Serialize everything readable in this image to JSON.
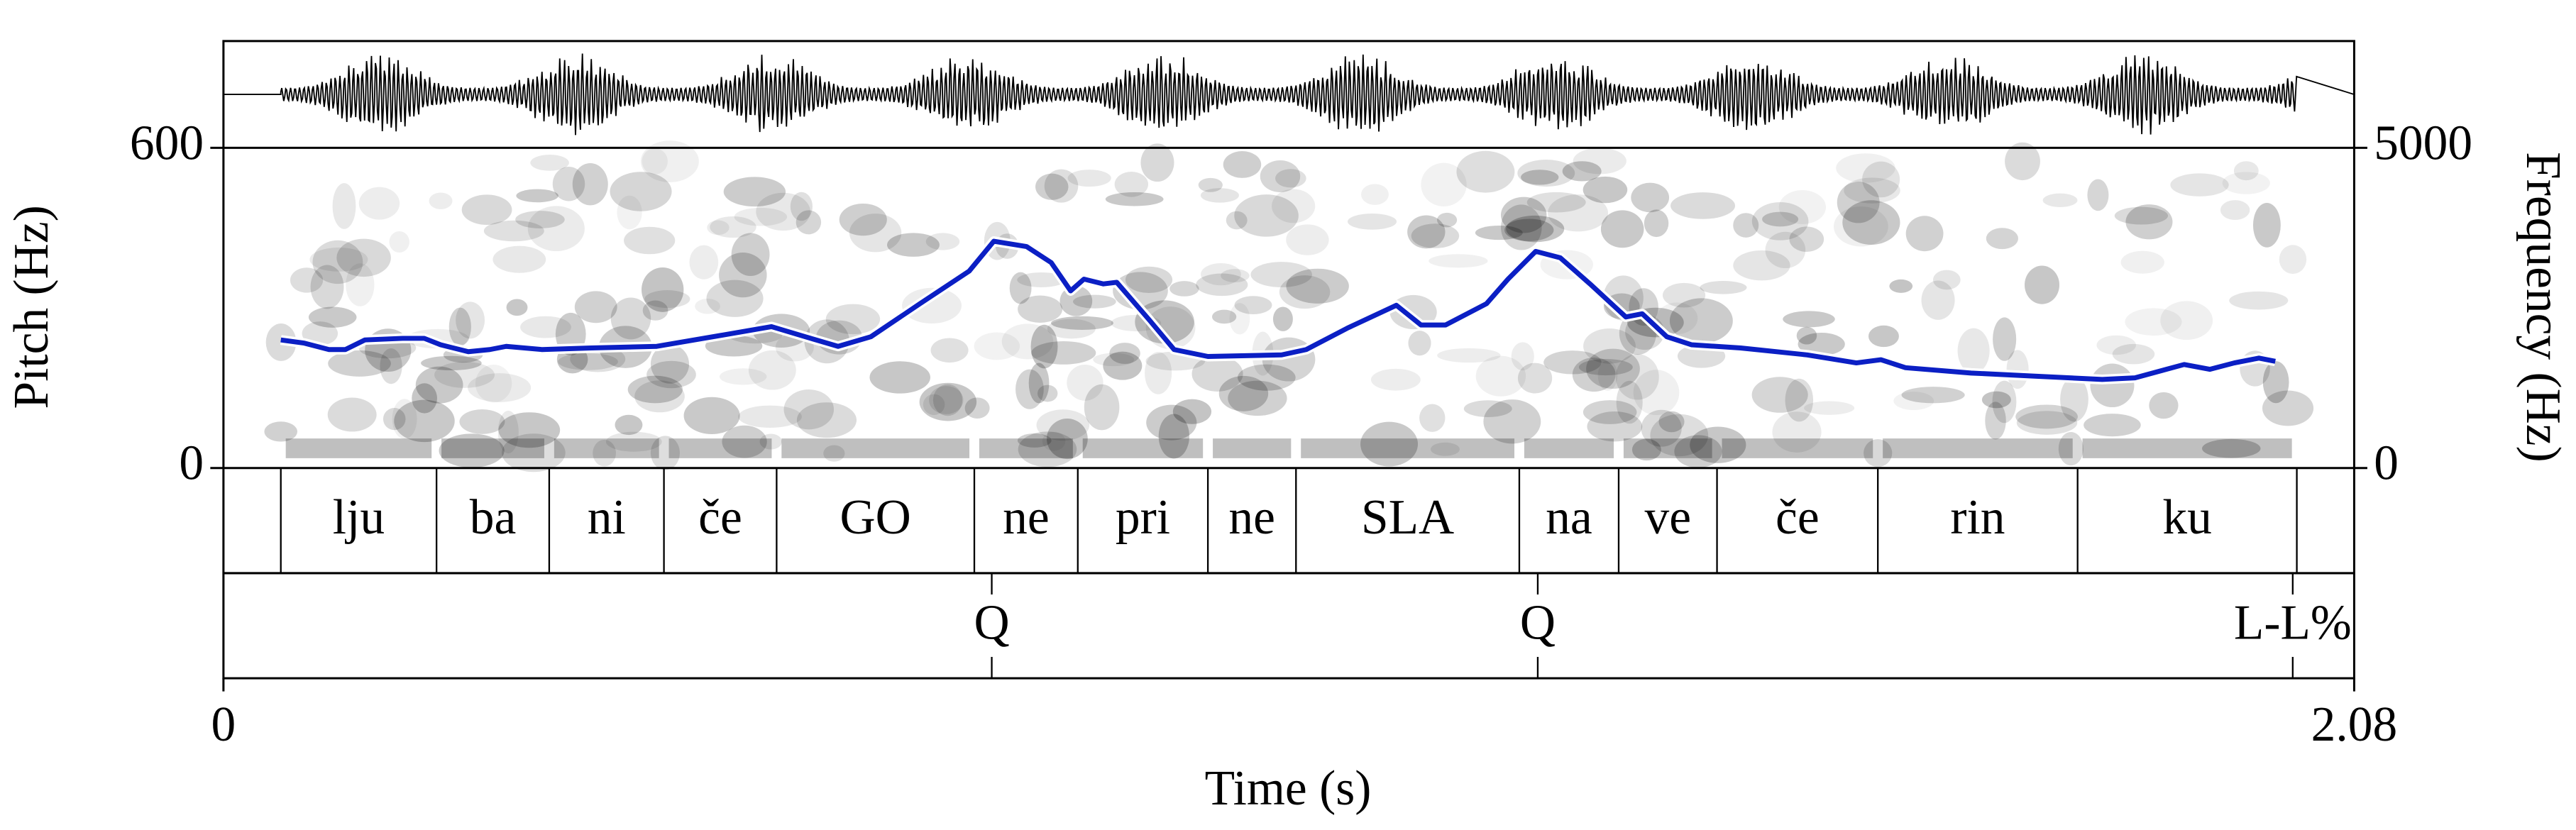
{
  "chart_data": {
    "type": "pitch",
    "xlabel": "Time (s)",
    "ylabel": "Pitch (Hz)",
    "y2label": "Frequency (Hz)",
    "xlim": [
      0,
      2.08
    ],
    "xticks": [
      0,
      2.08
    ],
    "ylim": [
      0,
      600
    ],
    "yticks": [
      0,
      600
    ],
    "y2lim": [
      0,
      5000
    ],
    "y2ticks": [
      0,
      5000
    ],
    "color": "#0b1fc4",
    "x": [
      0.056,
      0.079,
      0.103,
      0.119,
      0.138,
      0.175,
      0.196,
      0.212,
      0.239,
      0.26,
      0.276,
      0.311,
      0.359,
      0.423,
      0.487,
      0.535,
      0.568,
      0.6,
      0.632,
      0.68,
      0.728,
      0.752,
      0.784,
      0.808,
      0.827,
      0.84,
      0.859,
      0.872,
      0.904,
      0.928,
      0.961,
      1.033,
      1.057,
      1.097,
      1.145,
      1.169,
      1.193,
      1.233,
      1.254,
      1.281,
      1.305,
      1.334,
      1.369,
      1.385,
      1.409,
      1.433,
      1.481,
      1.546,
      1.594,
      1.618,
      1.642,
      1.706,
      1.77,
      1.834,
      1.866,
      1.914,
      1.939,
      1.963,
      1.987,
      2.003
    ],
    "values": [
      240,
      234,
      222,
      222,
      240,
      243,
      243,
      231,
      218,
      222,
      228,
      222,
      225,
      228,
      249,
      265,
      246,
      228,
      246,
      308,
      369,
      425,
      415,
      385,
      332,
      354,
      345,
      348,
      277,
      222,
      209,
      212,
      222,
      262,
      305,
      268,
      268,
      308,
      354,
      406,
      394,
      345,
      283,
      289,
      246,
      231,
      225,
      212,
      197,
      203,
      188,
      178,
      172,
      166,
      169,
      194,
      185,
      197,
      206,
      200
    ],
    "syllables": {
      "boundaries": [
        0.056,
        0.208,
        0.318,
        0.43,
        0.54,
        0.733,
        0.834,
        0.961,
        1.047,
        1.265,
        1.362,
        1.458,
        1.615,
        1.81,
        2.024
      ],
      "labels": [
        "lju",
        "ba",
        "ni",
        "če",
        "GO",
        "ne",
        "pri",
        "ne",
        "SLA",
        "na",
        "ve",
        "če",
        "rin",
        "ku"
      ]
    },
    "tones": {
      "times": [
        0.75,
        1.283,
        2.02
      ],
      "labels": [
        "Q",
        "Q",
        "L-L%"
      ]
    }
  }
}
